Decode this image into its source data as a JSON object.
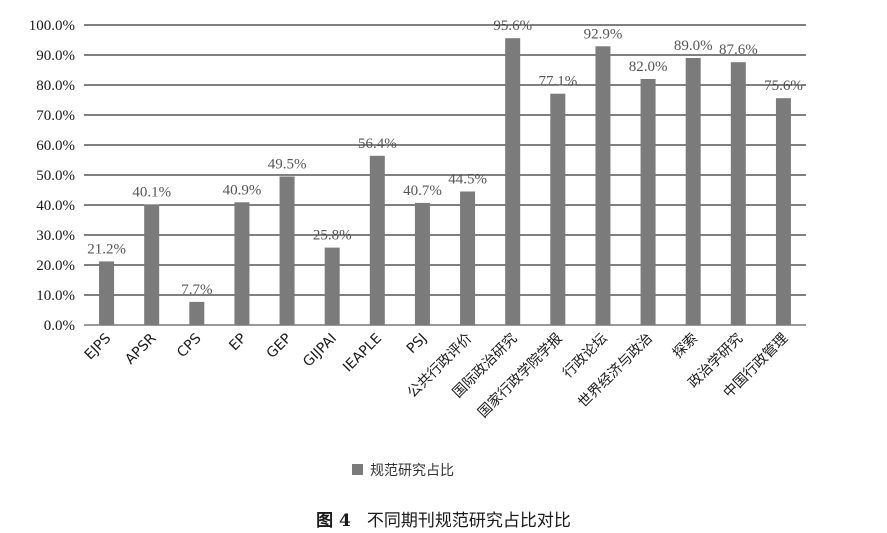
{
  "chart_data": {
    "type": "bar",
    "categories": [
      "EJPS",
      "APSR",
      "CPS",
      "EP",
      "GEP",
      "GIJPAI",
      "IEAPLE",
      "PSJ",
      "公共行政评价",
      "国际政治研究",
      "国家行政学院学报",
      "行政论坛",
      "世界经济与政治",
      "探索",
      "政治学研究",
      "中国行政管理"
    ],
    "series": [
      {
        "name": "规范研究占比",
        "values": [
          21.2,
          40.1,
          7.7,
          40.9,
          49.5,
          25.8,
          56.4,
          40.7,
          44.5,
          95.6,
          77.1,
          92.9,
          82.0,
          89.0,
          87.6,
          75.6
        ]
      }
    ],
    "data_labels": [
      "21.2%",
      "40.1%",
      "7.7%",
      "40.9%",
      "49.5%",
      "25.8%",
      "56.4%",
      "40.7%",
      "44.5%",
      "95.6%",
      "77.1%",
      "92.9%",
      "82.0%",
      "89.0%",
      "87.6%",
      "75.6%"
    ],
    "y_ticks": [
      "0.0%",
      "10.0%",
      "20.0%",
      "30.0%",
      "40.0%",
      "50.0%",
      "60.0%",
      "70.0%",
      "80.0%",
      "90.0%",
      "100.0%"
    ],
    "ylim": [
      0,
      100
    ],
    "grid": true,
    "legend": "bottom",
    "bar_color": "#7b7b7b",
    "title": "不同期刊规范研究占比对比"
  },
  "caption": {
    "figure_number": "图 4",
    "text": "不同期刊规范研究占比对比"
  }
}
